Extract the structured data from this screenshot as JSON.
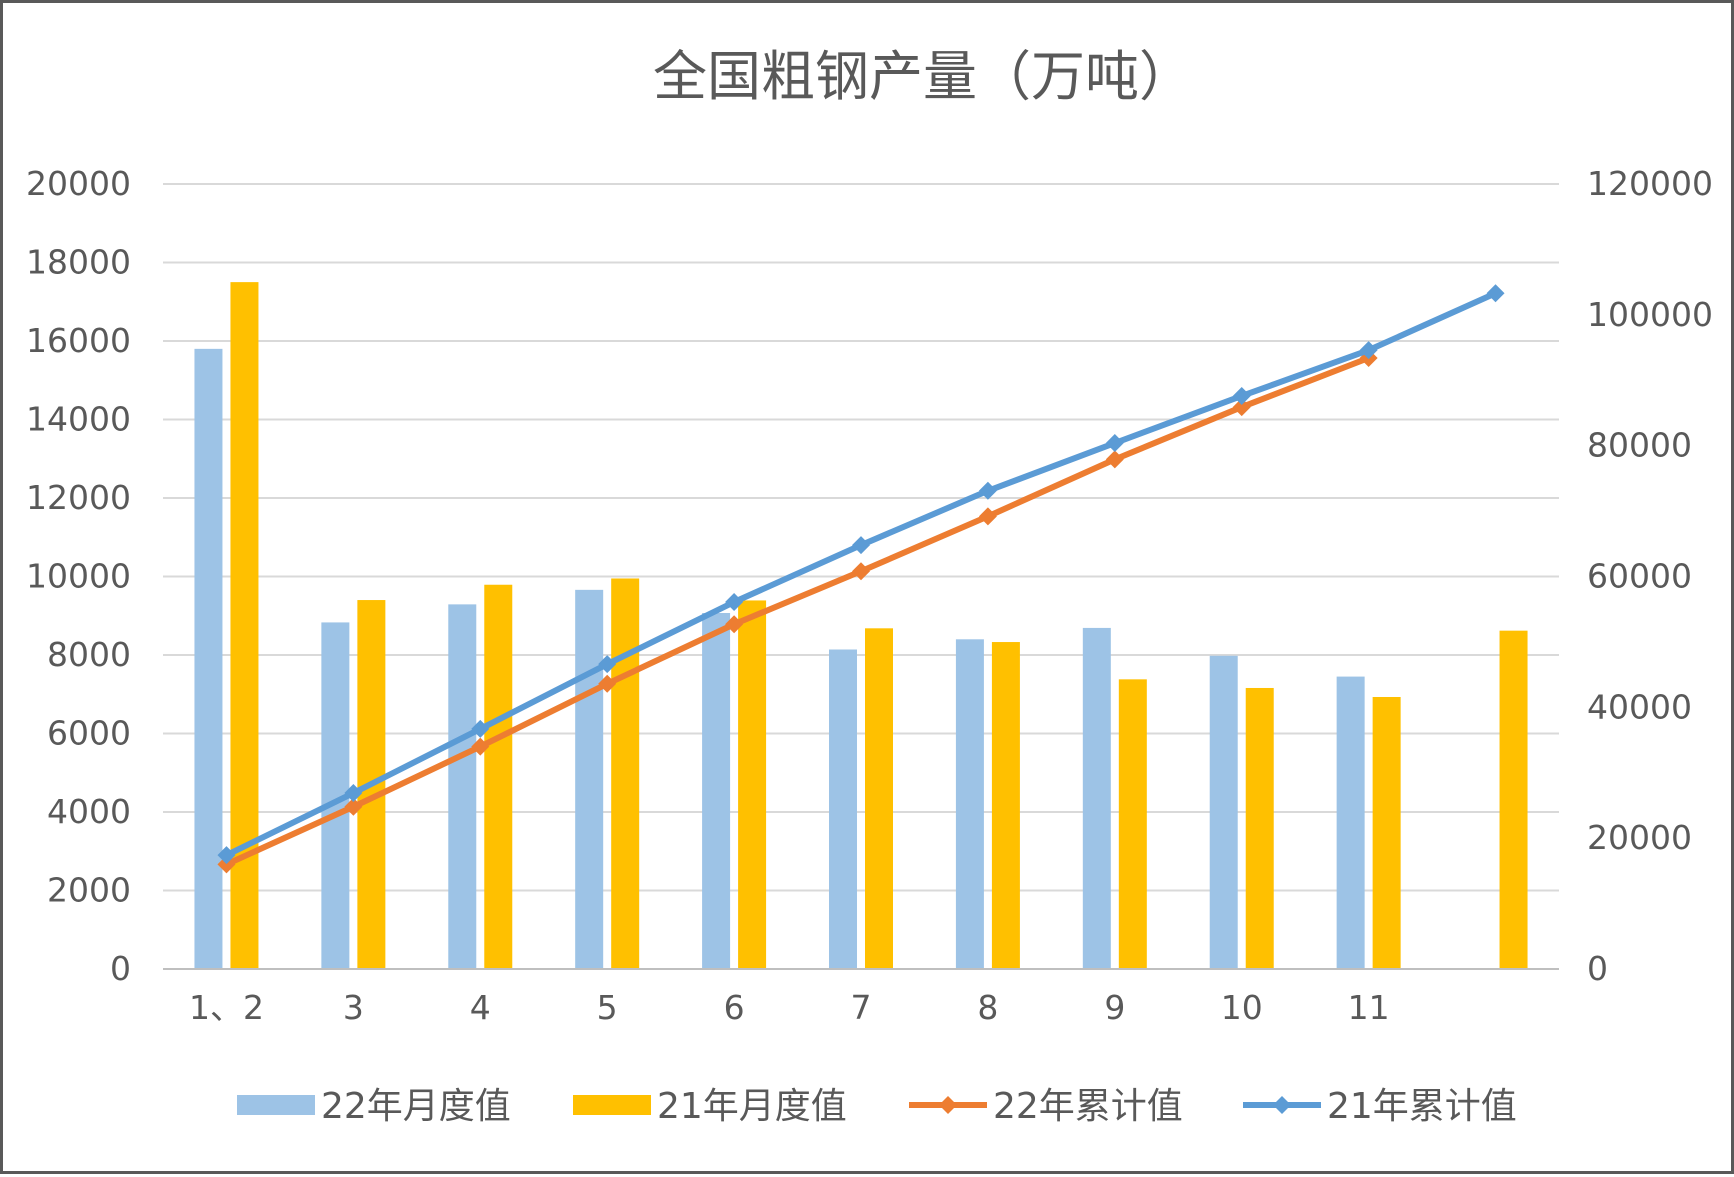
{
  "chart_data": {
    "type": "bar",
    "title": "全国粗钢产量（万吨）",
    "categories": [
      "1、2",
      "3",
      "4",
      "5",
      "6",
      "7",
      "8",
      "9",
      "10",
      "11",
      ""
    ],
    "y_left": {
      "min": 0,
      "max": 20000,
      "step": 2000,
      "ticks": [
        "0",
        "2000",
        "4000",
        "6000",
        "8000",
        "10000",
        "12000",
        "14000",
        "16000",
        "18000",
        "20000"
      ]
    },
    "y_right": {
      "min": 0,
      "max": 120000,
      "step": 20000,
      "ticks": [
        "0",
        "20000",
        "40000",
        "60000",
        "80000",
        "100000",
        "120000"
      ]
    },
    "grid": true,
    "legend_position": "bottom",
    "series": [
      {
        "name": "22年月度值",
        "kind": "bar",
        "axis": "left",
        "color": "#9DC3E6",
        "values": [
          15800,
          8830,
          9290,
          9660,
          9070,
          8140,
          8400,
          8690,
          7980,
          7450,
          null
        ]
      },
      {
        "name": "21年月度值",
        "kind": "bar",
        "axis": "left",
        "color": "#FFC000",
        "values": [
          17500,
          9400,
          9790,
          9950,
          9390,
          8680,
          8330,
          7380,
          7160,
          6930,
          8620
        ]
      },
      {
        "name": "22年累计值",
        "kind": "line",
        "axis": "right",
        "color": "#ED7D31",
        "values": [
          16000,
          24800,
          34000,
          43600,
          52700,
          60800,
          69200,
          77900,
          85900,
          93400,
          null
        ]
      },
      {
        "name": "21年累计值",
        "kind": "line",
        "axis": "right",
        "color": "#5B9BD5",
        "values": [
          17400,
          26900,
          36700,
          46600,
          56100,
          64800,
          73100,
          80400,
          87600,
          94600,
          103300
        ]
      }
    ]
  }
}
